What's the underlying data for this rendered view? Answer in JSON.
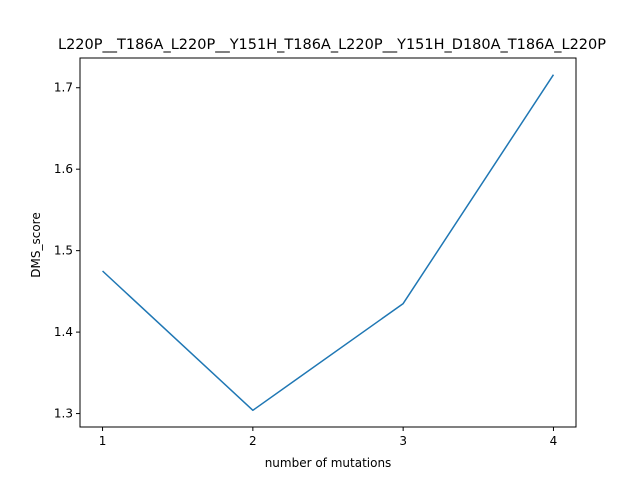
{
  "chart_data": {
    "type": "line",
    "title": "L220P__T186A_L220P__Y151H_T186A_L220P__Y151H_D180A_T186A_L220P",
    "xlabel": "number of mutations",
    "ylabel": "DMS_score",
    "x": [
      1,
      2,
      3,
      4
    ],
    "series": [
      {
        "values": [
          1.475,
          1.304,
          1.435,
          1.716
        ],
        "color": "#1f77b4"
      }
    ],
    "xticks": [
      "1",
      "2",
      "3",
      "4"
    ],
    "yticks": [
      "1.3",
      "1.4",
      "1.5",
      "1.6",
      "1.7"
    ],
    "xlim": [
      0.85,
      4.15
    ],
    "ylim": [
      1.2835,
      1.7365
    ],
    "grid": false
  }
}
